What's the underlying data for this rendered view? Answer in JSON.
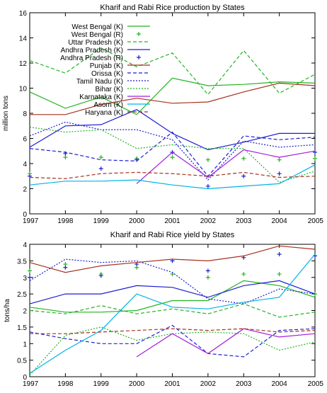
{
  "chart_data": [
    {
      "type": "line",
      "title": "Kharif and Rabi Rice production by States",
      "xlabel": "",
      "ylabel": "million tons",
      "x": [
        1997,
        1998,
        1999,
        2000,
        2001,
        2002,
        2003,
        2004,
        2005
      ],
      "xlim": [
        1997,
        2005
      ],
      "ylim": [
        0,
        16
      ],
      "yticks": [
        0,
        2,
        4,
        6,
        8,
        10,
        12,
        14,
        16
      ],
      "grid": false,
      "legend_position": "top-left",
      "series": [
        {
          "name": "West Bengal (K)",
          "color": "#22b422",
          "style": "solid",
          "values": [
            9.7,
            8.4,
            9.3,
            7.9,
            10.8,
            10.2,
            10.3,
            10.5,
            10.4
          ]
        },
        {
          "name": "West Bengal (R)",
          "color": "#22b422",
          "style": "marker",
          "values": [
            3.2,
            4.5,
            4.5,
            4.4,
            4.5,
            4.3,
            4.4,
            4.3,
            4.4
          ]
        },
        {
          "name": "Uttar Pradesh (K)",
          "color": "#22b422",
          "style": "dashed",
          "values": [
            12.2,
            11.2,
            13.2,
            11.7,
            12.8,
            9.5,
            13.0,
            9.6,
            11.1
          ]
        },
        {
          "name": "Andhra Pradesh (K)",
          "color": "#1e1ed2",
          "style": "solid",
          "values": [
            5.3,
            7.0,
            7.1,
            8.3,
            6.4,
            5.1,
            5.7,
            6.4,
            6.4
          ]
        },
        {
          "name": "Andhra Pradesh (R)",
          "color": "#1e1ed2",
          "style": "marker",
          "values": [
            3.0,
            4.8,
            3.6,
            4.3,
            4.9,
            2.2,
            3.0,
            3.2,
            4.9
          ]
        },
        {
          "name": "Punjab (K)",
          "color": "#a5321e",
          "style": "solid",
          "values": [
            7.9,
            7.9,
            8.7,
            9.2,
            8.8,
            8.9,
            9.7,
            10.4,
            10.2
          ]
        },
        {
          "name": "Orissa (K)",
          "color": "#1e1ed2",
          "style": "dashed",
          "values": [
            5.2,
            4.9,
            4.3,
            4.2,
            6.5,
            3.0,
            6.2,
            5.9,
            6.1
          ]
        },
        {
          "name": "Tamil Nadu (K)",
          "color": "#1e1ed2",
          "style": "dotted",
          "values": [
            6.2,
            7.3,
            6.7,
            6.7,
            5.9,
            2.7,
            5.8,
            5.3,
            5.5
          ]
        },
        {
          "name": "Bihar (K)",
          "color": "#22b422",
          "style": "dotted",
          "values": [
            6.9,
            6.5,
            6.7,
            5.2,
            5.5,
            5.2,
            5.2,
            2.5,
            3.4
          ]
        },
        {
          "name": "Karnataka (K)",
          "color": "#a21fdc",
          "style": "solid",
          "values": [
            null,
            null,
            null,
            2.4,
            4.9,
            2.9,
            5.1,
            4.5,
            5.0
          ]
        },
        {
          "name": "Asom (K)",
          "color": "#00b4e6",
          "style": "solid",
          "values": [
            2.3,
            2.6,
            2.6,
            2.7,
            2.3,
            2.0,
            2.2,
            2.4,
            3.9
          ]
        },
        {
          "name": "Haryana (K)",
          "color": "#a5321e",
          "style": "dashed",
          "values": [
            2.9,
            2.8,
            3.2,
            3.3,
            3.2,
            3.0,
            3.3,
            2.9,
            3.0
          ]
        }
      ]
    },
    {
      "type": "line",
      "title": "Kharif and Rabi Rice yield by States",
      "xlabel": "",
      "ylabel": "tons/ha",
      "x": [
        1997,
        1998,
        1999,
        2000,
        2001,
        2002,
        2003,
        2004,
        2005
      ],
      "xlim": [
        1997,
        2005
      ],
      "ylim": [
        0,
        4
      ],
      "yticks": [
        0,
        0.5,
        1,
        1.5,
        2,
        2.5,
        3,
        3.5,
        4
      ],
      "grid": false,
      "series": [
        {
          "name": "West Bengal (K)",
          "color": "#22b422",
          "style": "solid",
          "values": [
            2.1,
            1.95,
            1.95,
            2.0,
            2.3,
            2.3,
            2.9,
            2.75,
            2.4
          ]
        },
        {
          "name": "West Bengal (R)",
          "color": "#22b422",
          "style": "marker",
          "values": [
            3.2,
            3.4,
            3.1,
            3.3,
            3.1,
            3.0,
            3.1,
            3.1,
            2.5
          ]
        },
        {
          "name": "Uttar Pradesh (K)",
          "color": "#22b422",
          "style": "dashed",
          "values": [
            2.0,
            1.9,
            2.15,
            1.9,
            2.05,
            1.9,
            2.2,
            1.8,
            1.95
          ]
        },
        {
          "name": "Andhra Pradesh (K)",
          "color": "#1e1ed2",
          "style": "solid",
          "values": [
            2.2,
            2.5,
            2.5,
            2.75,
            2.7,
            2.4,
            2.75,
            2.9,
            2.5
          ]
        },
        {
          "name": "Andhra Pradesh (R)",
          "color": "#1e1ed2",
          "style": "marker",
          "values": [
            3.0,
            3.3,
            3.05,
            3.4,
            3.5,
            3.2,
            3.6,
            3.7,
            3.65
          ]
        },
        {
          "name": "Punjab (K)",
          "color": "#a5321e",
          "style": "solid",
          "values": [
            3.45,
            3.15,
            3.35,
            3.45,
            3.55,
            3.5,
            3.65,
            3.95,
            3.85
          ]
        },
        {
          "name": "Orissa (K)",
          "color": "#1e1ed2",
          "style": "dashed",
          "values": [
            1.35,
            1.15,
            1.0,
            1.0,
            1.55,
            0.7,
            0.6,
            1.4,
            1.45
          ]
        },
        {
          "name": "Tamil Nadu (K)",
          "color": "#1e1ed2",
          "style": "dotted",
          "values": [
            2.9,
            3.55,
            3.45,
            3.5,
            3.15,
            2.35,
            2.2,
            2.65,
            2.5
          ]
        },
        {
          "name": "Bihar (K)",
          "color": "#22b422",
          "style": "dotted",
          "values": [
            0.05,
            1.25,
            1.5,
            1.1,
            1.3,
            1.35,
            1.3,
            0.8,
            1.05
          ]
        },
        {
          "name": "Karnataka (K)",
          "color": "#a21fdc",
          "style": "solid",
          "values": [
            null,
            null,
            null,
            0.6,
            1.3,
            0.7,
            1.45,
            1.2,
            1.3
          ]
        },
        {
          "name": "Asom (K)",
          "color": "#00b4e6",
          "style": "solid",
          "values": [
            0.1,
            0.8,
            1.4,
            2.5,
            2.1,
            2.05,
            2.25,
            2.4,
            3.7
          ]
        },
        {
          "name": "Haryana (K)",
          "color": "#a5321e",
          "style": "dashed",
          "values": [
            1.3,
            1.3,
            1.35,
            1.4,
            1.45,
            1.4,
            1.45,
            1.35,
            1.4
          ]
        }
      ]
    }
  ]
}
